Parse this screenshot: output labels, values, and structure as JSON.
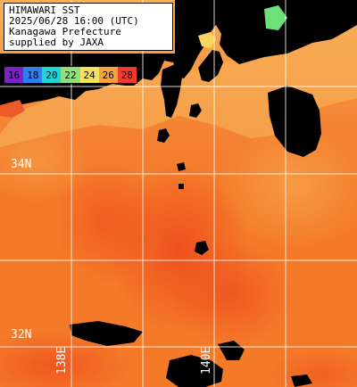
{
  "title": {
    "line1": "HIMAWARI SST",
    "line2": "2025/06/28 16:00 (UTC)",
    "line3": "Kanagawa Prefecture",
    "line4": "supplied by JAXA"
  },
  "colorbar": {
    "ticks": [
      "16",
      "18",
      "20",
      "22",
      "24",
      "26",
      "28"
    ],
    "colors": [
      "#7b22c8",
      "#2f7ff0",
      "#1ed6d6",
      "#8ee07a",
      "#f3e35a",
      "#f7a23c",
      "#ee3a30"
    ]
  },
  "grid": {
    "lat_labels": [
      "34N",
      "32N"
    ],
    "lon_labels": [
      "138E",
      "140E"
    ]
  },
  "colors": {
    "land": "#000000",
    "grid": "#ffffff",
    "sea_base": "#f47a28",
    "sea_cool_coast": "#f7b055",
    "sea_warm_south": "#f05a20"
  }
}
